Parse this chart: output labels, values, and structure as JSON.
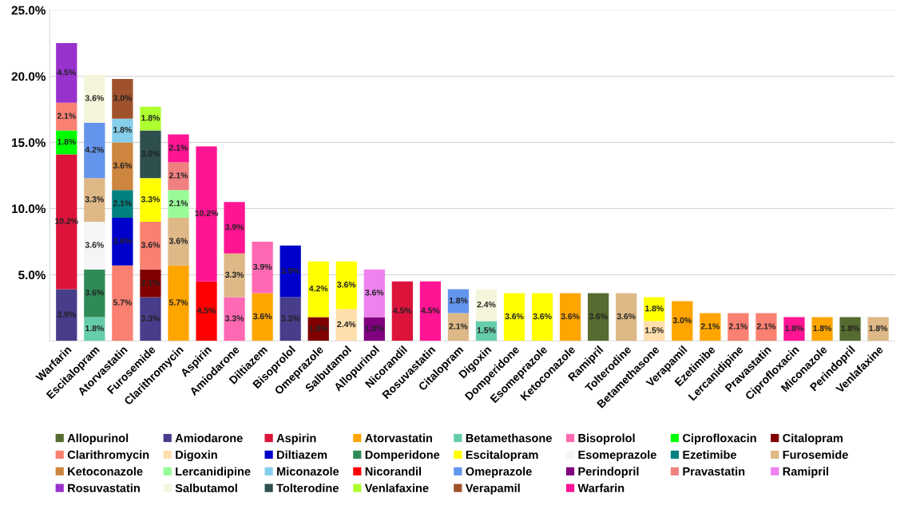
{
  "chart_data": {
    "type": "bar",
    "stacked": true,
    "categories": [
      "Warfarin",
      "Escitalopram",
      "Atorvastatin",
      "Furosemide",
      "Clarithromycin",
      "Aspirin",
      "Amiodarone",
      "Diltiazem",
      "Bisoprolol",
      "Omeprazole",
      "Salbutamol",
      "Allopurinol",
      "Nicorandil",
      "Rosuvastatin",
      "Citalopram",
      "Digoxin",
      "Domperidone",
      "Esomeprazole",
      "Ketoconazole",
      "Ramipril",
      "Tolterodine",
      "Betamethasone",
      "Verapamil",
      "Ezetimibe",
      "Lercanidipine",
      "Pravastatin",
      "Ciprofloxacin",
      "Miconazole",
      "Perindopril",
      "Venlafaxine"
    ],
    "ylim": [
      0,
      25
    ],
    "yticks": [
      {
        "value": 5,
        "label": "5.0%"
      },
      {
        "value": 10,
        "label": "10.0%"
      },
      {
        "value": 15,
        "label": "15.0%"
      },
      {
        "value": 20,
        "label": "20.0%"
      },
      {
        "value": 25,
        "label": "25.0%"
      }
    ],
    "grid": "y",
    "legend": "bottom",
    "series": [
      {
        "name": "Allopurinol",
        "color": "#556b2f",
        "values": [
          null,
          null,
          null,
          null,
          null,
          null,
          null,
          null,
          null,
          null,
          null,
          null,
          null,
          null,
          null,
          null,
          null,
          null,
          null,
          3.6,
          null,
          null,
          null,
          null,
          null,
          null,
          null,
          null,
          1.8,
          null
        ],
        "value_labels": [
          null,
          null,
          null,
          null,
          null,
          null,
          null,
          null,
          null,
          null,
          null,
          null,
          null,
          null,
          null,
          null,
          null,
          null,
          null,
          "3.6%",
          null,
          null,
          null,
          null,
          null,
          null,
          null,
          null,
          "1.8%",
          null
        ]
      },
      {
        "name": "Amiodarone",
        "color": "#483d8b",
        "values": [
          3.9,
          null,
          null,
          3.3,
          null,
          null,
          null,
          null,
          3.3,
          null,
          null,
          null,
          null,
          null,
          null,
          null,
          null,
          null,
          null,
          null,
          null,
          null,
          null,
          null,
          null,
          null,
          null,
          null,
          null,
          null
        ],
        "value_labels": [
          "3.9%",
          null,
          null,
          "3.3%",
          null,
          null,
          null,
          null,
          "3.3%",
          null,
          null,
          null,
          null,
          null,
          null,
          null,
          null,
          null,
          null,
          null,
          null,
          null,
          null,
          null,
          null,
          null,
          null,
          null,
          null,
          null
        ]
      },
      {
        "name": "Aspirin",
        "color": "#dc143c",
        "values": [
          10.2,
          null,
          null,
          null,
          null,
          null,
          null,
          null,
          null,
          null,
          null,
          null,
          4.5,
          null,
          null,
          null,
          null,
          null,
          null,
          null,
          null,
          null,
          null,
          null,
          null,
          null,
          null,
          null,
          null,
          null
        ],
        "value_labels": [
          "10.2%",
          null,
          null,
          null,
          null,
          null,
          null,
          null,
          null,
          null,
          null,
          null,
          "4.5%",
          null,
          null,
          null,
          null,
          null,
          null,
          null,
          null,
          null,
          null,
          null,
          null,
          null,
          null,
          null,
          null,
          null
        ]
      },
      {
        "name": "Atorvastatin",
        "color": "#ffa500",
        "values": [
          null,
          null,
          null,
          null,
          5.7,
          null,
          null,
          3.6,
          null,
          null,
          null,
          null,
          null,
          null,
          null,
          null,
          null,
          null,
          3.6,
          null,
          null,
          null,
          3.0,
          2.1,
          null,
          null,
          null,
          1.8,
          null,
          null
        ],
        "value_labels": [
          null,
          null,
          null,
          null,
          "5.7%",
          null,
          null,
          "3.6%",
          null,
          null,
          null,
          null,
          null,
          null,
          null,
          null,
          null,
          null,
          "3.6%",
          null,
          null,
          null,
          "3.0%",
          "2.1%",
          null,
          null,
          null,
          "1.8%",
          null,
          null
        ]
      },
      {
        "name": "Betamethasone",
        "color": "#66cdaa",
        "values": [
          null,
          1.8,
          null,
          null,
          null,
          null,
          null,
          null,
          null,
          null,
          null,
          null,
          null,
          null,
          null,
          1.5,
          null,
          null,
          null,
          null,
          null,
          null,
          null,
          null,
          null,
          null,
          null,
          null,
          null,
          null
        ],
        "value_labels": [
          null,
          "1.8%",
          null,
          null,
          null,
          null,
          null,
          null,
          null,
          null,
          null,
          null,
          null,
          null,
          null,
          "1.5%",
          null,
          null,
          null,
          null,
          null,
          null,
          null,
          null,
          null,
          null,
          null,
          null,
          null,
          null
        ]
      },
      {
        "name": "Bisoprolol",
        "color": "#ff69b4",
        "values": [
          null,
          null,
          null,
          null,
          null,
          null,
          3.3,
          3.9,
          null,
          null,
          null,
          null,
          null,
          null,
          null,
          null,
          null,
          null,
          null,
          null,
          null,
          null,
          null,
          null,
          null,
          null,
          null,
          null,
          null,
          null
        ],
        "value_labels": [
          null,
          null,
          null,
          null,
          null,
          null,
          "3.3%",
          "3.9%",
          null,
          null,
          null,
          null,
          null,
          null,
          null,
          null,
          null,
          null,
          null,
          null,
          null,
          null,
          null,
          null,
          null,
          null,
          null,
          null,
          null,
          null
        ]
      },
      {
        "name": "Ciprofloxacin",
        "color": "#00ff00",
        "values": [
          1.8,
          null,
          null,
          null,
          null,
          null,
          null,
          null,
          null,
          null,
          null,
          null,
          null,
          null,
          null,
          null,
          null,
          null,
          null,
          null,
          null,
          null,
          null,
          null,
          null,
          null,
          null,
          null,
          null,
          null
        ],
        "value_labels": [
          "1.8%",
          null,
          null,
          null,
          null,
          null,
          null,
          null,
          null,
          null,
          null,
          null,
          null,
          null,
          null,
          null,
          null,
          null,
          null,
          null,
          null,
          null,
          null,
          null,
          null,
          null,
          null,
          null,
          null,
          null
        ]
      },
      {
        "name": "Citalopram",
        "color": "#800000",
        "values": [
          null,
          null,
          null,
          2.1,
          null,
          null,
          null,
          null,
          null,
          1.8,
          null,
          null,
          null,
          null,
          null,
          null,
          null,
          null,
          null,
          null,
          null,
          null,
          null,
          null,
          null,
          null,
          null,
          null,
          null,
          null
        ],
        "value_labels": [
          null,
          null,
          null,
          "2.1%",
          null,
          null,
          null,
          null,
          null,
          "1.8%",
          null,
          null,
          null,
          null,
          null,
          null,
          null,
          null,
          null,
          null,
          null,
          null,
          null,
          null,
          null,
          null,
          null,
          null,
          null,
          null
        ]
      },
      {
        "name": "Clarithromycin",
        "color": "#fa8072",
        "values": [
          2.1,
          null,
          5.7,
          3.6,
          null,
          null,
          null,
          null,
          null,
          null,
          null,
          null,
          null,
          null,
          null,
          null,
          null,
          null,
          null,
          null,
          null,
          null,
          null,
          null,
          2.1,
          2.1,
          null,
          null,
          null,
          null
        ],
        "value_labels": [
          "2.1%",
          null,
          "5.7%",
          "3.6%",
          null,
          null,
          null,
          null,
          null,
          null,
          null,
          null,
          null,
          null,
          null,
          null,
          null,
          null,
          null,
          null,
          null,
          null,
          null,
          null,
          "2.1%",
          "2.1%",
          null,
          null,
          null,
          null
        ]
      },
      {
        "name": "Digoxin",
        "color": "#ffdead",
        "values": [
          null,
          null,
          null,
          null,
          null,
          null,
          null,
          null,
          null,
          null,
          2.4,
          null,
          null,
          null,
          null,
          null,
          null,
          null,
          null,
          null,
          null,
          1.5,
          null,
          null,
          null,
          null,
          null,
          null,
          null,
          null
        ],
        "value_labels": [
          null,
          null,
          null,
          null,
          null,
          null,
          null,
          null,
          null,
          null,
          "2.4%",
          null,
          null,
          null,
          null,
          null,
          null,
          null,
          null,
          null,
          null,
          "1.5%",
          null,
          null,
          null,
          null,
          null,
          null,
          null,
          null
        ]
      },
      {
        "name": "Diltiazem",
        "color": "#0000cd",
        "values": [
          null,
          null,
          3.6,
          null,
          null,
          null,
          null,
          null,
          3.9,
          null,
          null,
          null,
          null,
          null,
          null,
          null,
          null,
          null,
          null,
          null,
          null,
          null,
          null,
          null,
          null,
          null,
          null,
          null,
          null,
          null
        ],
        "value_labels": [
          null,
          null,
          "3.6%",
          null,
          null,
          null,
          null,
          null,
          "3.9%",
          null,
          null,
          null,
          null,
          null,
          null,
          null,
          null,
          null,
          null,
          null,
          null,
          null,
          null,
          null,
          null,
          null,
          null,
          null,
          null,
          null
        ]
      },
      {
        "name": "Domperidone",
        "color": "#2e8b57",
        "values": [
          null,
          3.6,
          null,
          null,
          null,
          null,
          null,
          null,
          null,
          null,
          null,
          null,
          null,
          null,
          null,
          null,
          null,
          null,
          null,
          null,
          null,
          null,
          null,
          null,
          null,
          null,
          null,
          null,
          null,
          null
        ],
        "value_labels": [
          null,
          "3.6%",
          null,
          null,
          null,
          null,
          null,
          null,
          null,
          null,
          null,
          null,
          null,
          null,
          null,
          null,
          null,
          null,
          null,
          null,
          null,
          null,
          null,
          null,
          null,
          null,
          null,
          null,
          null,
          null
        ]
      },
      {
        "name": "Escitalopram",
        "color": "#ffff00",
        "values": [
          null,
          null,
          null,
          3.3,
          null,
          null,
          null,
          null,
          null,
          4.2,
          3.6,
          null,
          null,
          null,
          null,
          null,
          3.6,
          3.6,
          null,
          null,
          null,
          1.8,
          null,
          null,
          null,
          null,
          null,
          null,
          null,
          null
        ],
        "value_labels": [
          null,
          null,
          null,
          "3.3%",
          null,
          null,
          null,
          null,
          null,
          "4.2%",
          "3.6%",
          null,
          null,
          null,
          null,
          null,
          "3.6%",
          "3.6%",
          null,
          null,
          null,
          "1.8%",
          null,
          null,
          null,
          null,
          null,
          null,
          null,
          null
        ]
      },
      {
        "name": "Esomeprazole",
        "color": "#f5f5f5",
        "values": [
          null,
          3.6,
          null,
          null,
          null,
          null,
          null,
          null,
          null,
          null,
          null,
          null,
          null,
          null,
          null,
          null,
          null,
          null,
          null,
          null,
          null,
          null,
          null,
          null,
          null,
          null,
          null,
          null,
          null,
          null
        ],
        "value_labels": [
          null,
          "3.6%",
          null,
          null,
          null,
          null,
          null,
          null,
          null,
          null,
          null,
          null,
          null,
          null,
          null,
          null,
          null,
          null,
          null,
          null,
          null,
          null,
          null,
          null,
          null,
          null,
          null,
          null,
          null,
          null
        ]
      },
      {
        "name": "Ezetimibe",
        "color": "#008080",
        "values": [
          null,
          null,
          2.1,
          null,
          null,
          null,
          null,
          null,
          null,
          null,
          null,
          null,
          null,
          null,
          null,
          null,
          null,
          null,
          null,
          null,
          null,
          null,
          null,
          null,
          null,
          null,
          null,
          null,
          null,
          null
        ],
        "value_labels": [
          null,
          null,
          "2.1%",
          null,
          null,
          null,
          null,
          null,
          null,
          null,
          null,
          null,
          null,
          null,
          null,
          null,
          null,
          null,
          null,
          null,
          null,
          null,
          null,
          null,
          null,
          null,
          null,
          null,
          null,
          null
        ]
      },
      {
        "name": "Furosemide",
        "color": "#deb887",
        "values": [
          null,
          3.3,
          null,
          null,
          3.6,
          null,
          3.3,
          null,
          null,
          null,
          null,
          null,
          null,
          null,
          2.1,
          null,
          null,
          null,
          null,
          null,
          3.6,
          null,
          null,
          null,
          null,
          null,
          null,
          null,
          null,
          1.8
        ],
        "value_labels": [
          null,
          "3.3%",
          null,
          null,
          "3.6%",
          null,
          "3.3%",
          null,
          null,
          null,
          null,
          null,
          null,
          null,
          "2.1%",
          null,
          null,
          null,
          null,
          null,
          "3.6%",
          null,
          null,
          null,
          null,
          null,
          null,
          null,
          null,
          "1.8%"
        ]
      },
      {
        "name": "Ketoconazole",
        "color": "#cd853f",
        "values": [
          null,
          null,
          3.6,
          null,
          null,
          null,
          null,
          null,
          null,
          null,
          null,
          null,
          null,
          null,
          null,
          null,
          null,
          null,
          null,
          null,
          null,
          null,
          null,
          null,
          null,
          null,
          null,
          null,
          null,
          null
        ],
        "value_labels": [
          null,
          null,
          "3.6%",
          null,
          null,
          null,
          null,
          null,
          null,
          null,
          null,
          null,
          null,
          null,
          null,
          null,
          null,
          null,
          null,
          null,
          null,
          null,
          null,
          null,
          null,
          null,
          null,
          null,
          null,
          null
        ]
      },
      {
        "name": "Lercanidipine",
        "color": "#98fb98",
        "values": [
          null,
          null,
          null,
          null,
          2.1,
          null,
          null,
          null,
          null,
          null,
          null,
          null,
          null,
          null,
          null,
          null,
          null,
          null,
          null,
          null,
          null,
          null,
          null,
          null,
          null,
          null,
          null,
          null,
          null,
          null
        ],
        "value_labels": [
          null,
          null,
          null,
          null,
          "2.1%",
          null,
          null,
          null,
          null,
          null,
          null,
          null,
          null,
          null,
          null,
          null,
          null,
          null,
          null,
          null,
          null,
          null,
          null,
          null,
          null,
          null,
          null,
          null,
          null,
          null
        ]
      },
      {
        "name": "Miconazole",
        "color": "#87ceeb",
        "values": [
          null,
          null,
          1.8,
          null,
          null,
          null,
          null,
          null,
          null,
          null,
          null,
          null,
          null,
          null,
          null,
          null,
          null,
          null,
          null,
          null,
          null,
          null,
          null,
          null,
          null,
          null,
          null,
          null,
          null,
          null
        ],
        "value_labels": [
          null,
          null,
          "1.8%",
          null,
          null,
          null,
          null,
          null,
          null,
          null,
          null,
          null,
          null,
          null,
          null,
          null,
          null,
          null,
          null,
          null,
          null,
          null,
          null,
          null,
          null,
          null,
          null,
          null,
          null,
          null
        ]
      },
      {
        "name": "Nicorandil",
        "color": "#ff0000",
        "values": [
          null,
          null,
          null,
          null,
          null,
          4.5,
          null,
          null,
          null,
          null,
          null,
          null,
          null,
          null,
          null,
          null,
          null,
          null,
          null,
          null,
          null,
          null,
          null,
          null,
          null,
          null,
          null,
          null,
          null,
          null
        ],
        "value_labels": [
          null,
          null,
          null,
          null,
          null,
          "4.5%",
          null,
          null,
          null,
          null,
          null,
          null,
          null,
          null,
          null,
          null,
          null,
          null,
          null,
          null,
          null,
          null,
          null,
          null,
          null,
          null,
          null,
          null,
          null,
          null
        ]
      },
      {
        "name": "Omeprazole",
        "color": "#6495ed",
        "values": [
          null,
          4.2,
          null,
          null,
          null,
          null,
          null,
          null,
          null,
          null,
          null,
          null,
          null,
          null,
          1.8,
          null,
          null,
          null,
          null,
          null,
          null,
          null,
          null,
          null,
          null,
          null,
          null,
          null,
          null,
          null
        ],
        "value_labels": [
          null,
          "4.2%",
          null,
          null,
          null,
          null,
          null,
          null,
          null,
          null,
          null,
          null,
          null,
          null,
          "1.8%",
          null,
          null,
          null,
          null,
          null,
          null,
          null,
          null,
          null,
          null,
          null,
          null,
          null,
          null,
          null
        ]
      },
      {
        "name": "Perindopril",
        "color": "#800080",
        "values": [
          null,
          null,
          null,
          null,
          null,
          null,
          null,
          null,
          null,
          null,
          null,
          1.8,
          null,
          null,
          null,
          null,
          null,
          null,
          null,
          null,
          null,
          null,
          null,
          null,
          null,
          null,
          null,
          null,
          null,
          null
        ],
        "value_labels": [
          null,
          null,
          null,
          null,
          null,
          null,
          null,
          null,
          null,
          null,
          null,
          "1.8%",
          null,
          null,
          null,
          null,
          null,
          null,
          null,
          null,
          null,
          null,
          null,
          null,
          null,
          null,
          null,
          null,
          null,
          null
        ]
      },
      {
        "name": "Pravastatin",
        "color": "#f08080",
        "values": [
          null,
          null,
          null,
          null,
          2.1,
          null,
          null,
          null,
          null,
          null,
          null,
          null,
          null,
          null,
          null,
          null,
          null,
          null,
          null,
          null,
          null,
          null,
          null,
          null,
          null,
          null,
          null,
          null,
          null,
          null
        ],
        "value_labels": [
          null,
          null,
          null,
          null,
          "2.1%",
          null,
          null,
          null,
          null,
          null,
          null,
          null,
          null,
          null,
          null,
          null,
          null,
          null,
          null,
          null,
          null,
          null,
          null,
          null,
          null,
          null,
          null,
          null,
          null,
          null
        ]
      },
      {
        "name": "Ramipril",
        "color": "#ee82ee",
        "values": [
          null,
          null,
          null,
          null,
          null,
          null,
          null,
          null,
          null,
          null,
          null,
          3.6,
          null,
          null,
          null,
          null,
          null,
          null,
          null,
          null,
          null,
          null,
          null,
          null,
          null,
          null,
          null,
          null,
          null,
          null
        ],
        "value_labels": [
          null,
          null,
          null,
          null,
          null,
          null,
          null,
          null,
          null,
          null,
          null,
          "3.6%",
          null,
          null,
          null,
          null,
          null,
          null,
          null,
          null,
          null,
          null,
          null,
          null,
          null,
          null,
          null,
          null,
          null,
          null
        ]
      },
      {
        "name": "Rosuvastatin",
        "color": "#9932cc",
        "values": [
          4.5,
          null,
          null,
          null,
          null,
          null,
          null,
          null,
          null,
          null,
          null,
          null,
          null,
          null,
          null,
          null,
          null,
          null,
          null,
          null,
          null,
          null,
          null,
          null,
          null,
          null,
          null,
          null,
          null,
          null
        ],
        "value_labels": [
          "4.5%",
          null,
          null,
          null,
          null,
          null,
          null,
          null,
          null,
          null,
          null,
          null,
          null,
          null,
          null,
          null,
          null,
          null,
          null,
          null,
          null,
          null,
          null,
          null,
          null,
          null,
          null,
          null,
          null,
          null
        ]
      },
      {
        "name": "Salbutamol",
        "color": "#f5f5dc",
        "values": [
          null,
          3.6,
          null,
          null,
          null,
          null,
          null,
          null,
          null,
          null,
          null,
          null,
          null,
          null,
          null,
          2.4,
          null,
          null,
          null,
          null,
          null,
          null,
          null,
          null,
          null,
          null,
          null,
          null,
          null,
          null
        ],
        "value_labels": [
          null,
          "3.6%",
          null,
          null,
          null,
          null,
          null,
          null,
          null,
          null,
          null,
          null,
          null,
          null,
          null,
          "2.4%",
          null,
          null,
          null,
          null,
          null,
          null,
          null,
          null,
          null,
          null,
          null,
          null,
          null,
          null
        ]
      },
      {
        "name": "Tolterodine",
        "color": "#2f4f4f",
        "values": [
          null,
          null,
          null,
          3.6,
          null,
          null,
          null,
          null,
          null,
          null,
          null,
          null,
          null,
          null,
          null,
          null,
          null,
          null,
          null,
          null,
          null,
          null,
          null,
          null,
          null,
          null,
          null,
          null,
          null,
          null
        ],
        "value_labels": [
          null,
          null,
          null,
          "3.6%",
          null,
          null,
          null,
          null,
          null,
          null,
          null,
          null,
          null,
          null,
          null,
          null,
          null,
          null,
          null,
          null,
          null,
          null,
          null,
          null,
          null,
          null,
          null,
          null,
          null,
          null
        ]
      },
      {
        "name": "Venlafaxine",
        "color": "#adff2f",
        "values": [
          null,
          null,
          null,
          1.8,
          null,
          null,
          null,
          null,
          null,
          null,
          null,
          null,
          null,
          null,
          null,
          null,
          null,
          null,
          null,
          null,
          null,
          null,
          null,
          null,
          null,
          null,
          null,
          null,
          null,
          null
        ],
        "value_labels": [
          null,
          null,
          null,
          "1.8%",
          null,
          null,
          null,
          null,
          null,
          null,
          null,
          null,
          null,
          null,
          null,
          null,
          null,
          null,
          null,
          null,
          null,
          null,
          null,
          null,
          null,
          null,
          null,
          null,
          null,
          null
        ]
      },
      {
        "name": "Verapamil",
        "color": "#a0522d",
        "values": [
          null,
          null,
          3.0,
          null,
          null,
          null,
          null,
          null,
          null,
          null,
          null,
          null,
          null,
          null,
          null,
          null,
          null,
          null,
          null,
          null,
          null,
          null,
          null,
          null,
          null,
          null,
          null,
          null,
          null,
          null
        ],
        "value_labels": [
          null,
          null,
          "3.0%",
          null,
          null,
          null,
          null,
          null,
          null,
          null,
          null,
          null,
          null,
          null,
          null,
          null,
          null,
          null,
          null,
          null,
          null,
          null,
          null,
          null,
          null,
          null,
          null,
          null,
          null,
          null
        ]
      },
      {
        "name": "Warfarin",
        "color": "#ff1493",
        "values": [
          null,
          null,
          null,
          null,
          2.1,
          10.2,
          3.9,
          null,
          null,
          null,
          null,
          null,
          null,
          4.5,
          null,
          null,
          null,
          null,
          null,
          null,
          null,
          null,
          null,
          null,
          null,
          null,
          1.8,
          null,
          null,
          null
        ],
        "value_labels": [
          null,
          null,
          null,
          null,
          "2.1%",
          "10.2%",
          "3.9%",
          null,
          null,
          null,
          null,
          null,
          null,
          "4.5%",
          null,
          null,
          null,
          null,
          null,
          null,
          null,
          null,
          null,
          null,
          null,
          null,
          "1.8%",
          null,
          null,
          null
        ]
      }
    ]
  }
}
